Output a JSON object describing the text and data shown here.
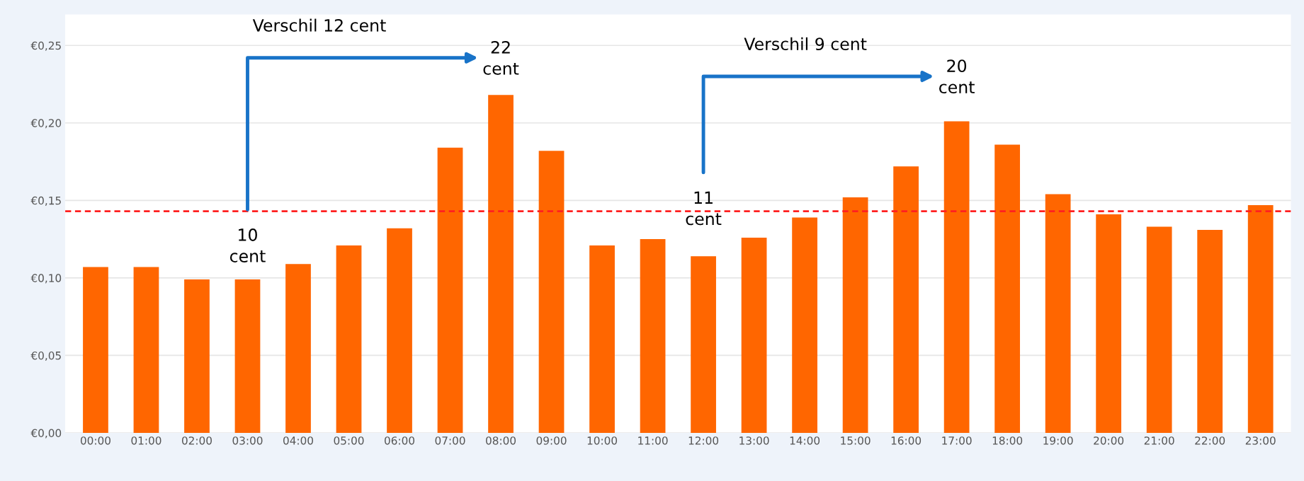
{
  "chart_data": {
    "type": "bar",
    "categories": [
      "00:00",
      "01:00",
      "02:00",
      "03:00",
      "04:00",
      "05:00",
      "06:00",
      "07:00",
      "08:00",
      "09:00",
      "10:00",
      "11:00",
      "12:00",
      "13:00",
      "14:00",
      "15:00",
      "16:00",
      "17:00",
      "18:00",
      "19:00",
      "20:00",
      "21:00",
      "22:00",
      "23:00"
    ],
    "values": [
      0.107,
      0.107,
      0.099,
      0.099,
      0.109,
      0.121,
      0.132,
      0.184,
      0.218,
      0.182,
      0.121,
      0.125,
      0.114,
      0.126,
      0.139,
      0.152,
      0.172,
      0.201,
      0.186,
      0.154,
      0.141,
      0.133,
      0.131,
      0.147
    ],
    "color": "#ff6600",
    "ylim": [
      0,
      0.27
    ],
    "yticks": [
      {
        "value": 0,
        "label": "€0,00"
      },
      {
        "value": 0.05,
        "label": "€0,05"
      },
      {
        "value": 0.1,
        "label": "€0,10"
      },
      {
        "value": 0.15,
        "label": "€0,15"
      },
      {
        "value": 0.2,
        "label": "€0,20"
      },
      {
        "value": 0.25,
        "label": "€0,25"
      }
    ],
    "grid": "y",
    "ref_lines": [
      {
        "axis": "y",
        "value": 0.143,
        "color": "#ff2020",
        "line_style": "dashed"
      }
    ],
    "annotations": [
      "Verschil 12 cent",
      "10\ncent",
      "22\ncent",
      "Verschil 9 cent",
      "11\ncent",
      "20\ncent"
    ]
  }
}
